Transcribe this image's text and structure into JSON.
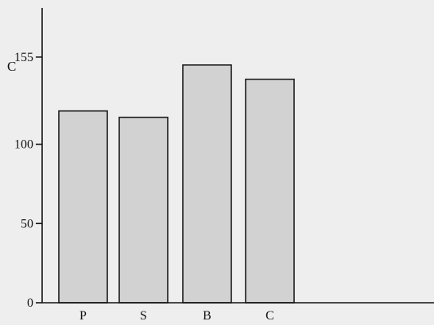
{
  "chart_data": {
    "type": "bar",
    "title": "",
    "xlabel": "",
    "ylabel": "C",
    "categories": [
      "P",
      "S",
      "B",
      "C"
    ],
    "values": [
      121,
      117,
      150,
      141
    ],
    "ylim": [
      0,
      186
    ],
    "yticks": [
      0,
      50,
      100,
      155
    ],
    "grid": false,
    "colors": {
      "bar_fill": "#d2d2d2",
      "bar_stroke": "#1a1a1a",
      "axis": "#111111",
      "background": "#eeeeee"
    }
  }
}
